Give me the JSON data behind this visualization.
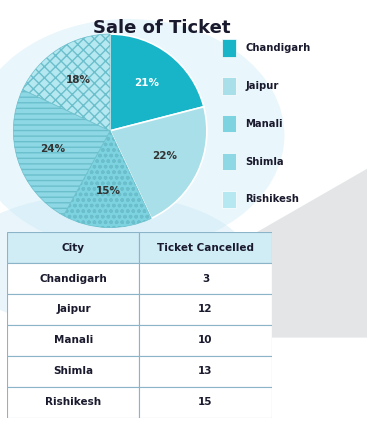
{
  "title": "Sale of Ticket",
  "pie_labels": [
    "Chandigarh",
    "Jaipur",
    "Manali",
    "Shimla",
    "Rishikesh"
  ],
  "pie_values": [
    21,
    22,
    15,
    24,
    18
  ],
  "pie_colors": [
    "#18b4c8",
    "#a8dfe8",
    "#7dd4e0",
    "#8ed8e5",
    "#b5e8f0"
  ],
  "pie_pct_labels": [
    "21%",
    "22%",
    "15%",
    "24%",
    "18%"
  ],
  "legend_labels": [
    "Chandigarh",
    "Jaipur",
    "Manali",
    "Shimla",
    "Rishikesh"
  ],
  "legend_colors": [
    "#18b4c8",
    "#a8dfe8",
    "#7dd4e0",
    "#8ed8e5",
    "#b5e8f0"
  ],
  "legend_markers": [
    "s",
    "s",
    "o",
    "s",
    "x"
  ],
  "table_headers": [
    "City",
    "Ticket Cancelled"
  ],
  "table_rows": [
    [
      "Chandigarh",
      "3"
    ],
    [
      "Jaipur",
      "12"
    ],
    [
      "Manali",
      "10"
    ],
    [
      "Shimla",
      "13"
    ],
    [
      "Rishikesh",
      "15"
    ]
  ],
  "bg_color": "#ffffff",
  "title_fontsize": 13,
  "startangle": 90,
  "pie_hatch": [
    null,
    null,
    "ooo",
    "---",
    "xxx"
  ]
}
